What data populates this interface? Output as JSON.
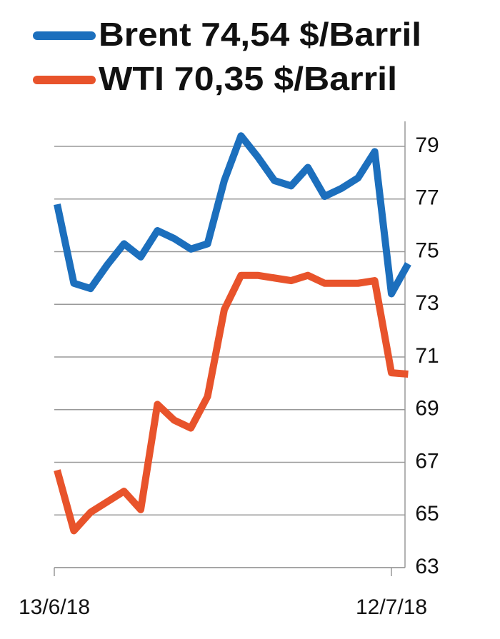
{
  "chart_data": {
    "type": "line",
    "categories": [
      "13/6/18",
      null,
      null,
      null,
      null,
      null,
      null,
      null,
      null,
      null,
      null,
      null,
      null,
      null,
      null,
      null,
      null,
      null,
      null,
      null,
      "12/7/18",
      null
    ],
    "series": [
      {
        "name": "Brent 74,54 $/Barril",
        "color": "#1c6fbd",
        "values": [
          76.8,
          73.8,
          73.6,
          74.5,
          75.3,
          74.8,
          75.8,
          75.5,
          75.1,
          75.3,
          77.7,
          79.4,
          78.6,
          77.7,
          77.5,
          78.2,
          77.1,
          77.4,
          77.8,
          78.8,
          73.4,
          74.54
        ]
      },
      {
        "name": "WTI 70,35 $/Barril",
        "color": "#e8532b",
        "values": [
          66.7,
          64.4,
          65.1,
          65.5,
          65.9,
          65.2,
          69.2,
          68.6,
          68.3,
          69.5,
          72.8,
          74.1,
          74.1,
          74.0,
          73.9,
          74.1,
          73.8,
          73.8,
          73.8,
          73.9,
          70.4,
          70.35
        ]
      }
    ],
    "ylim": [
      63,
      79.5
    ],
    "yticks": [
      63,
      65,
      67,
      69,
      71,
      73,
      75,
      77,
      79
    ],
    "grid": true
  }
}
